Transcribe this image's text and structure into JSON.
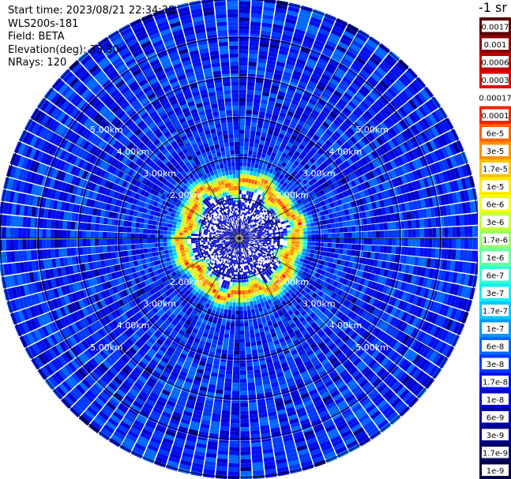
{
  "info": {
    "start_time": "Start time: 2023/08/21 22:34:38",
    "instrument": "WLS200s-181",
    "field": "Field: BETA",
    "elevation": "Elevation(deg): 35.30",
    "nrays": "NRays: 120"
  },
  "colorbar": {
    "unit_label": "-1 sr",
    "labels": [
      "0.0017",
      "0.001",
      "0.0006",
      "0.0003",
      "0.00017",
      "0.0001",
      "6e-5",
      "3e-5",
      "1.7e-5",
      "1e-5",
      "6e-6",
      "3e-6",
      "1.7e-6",
      "1e-6",
      "6e-7",
      "3e-7",
      "1.7e-7",
      "1e-7",
      "6e-8",
      "3e-8",
      "1.7e-8",
      "1e-8",
      "6e-9",
      "3e-9",
      "1.7e-9",
      "1e-9"
    ],
    "colors": [
      "#5a0000",
      "#8c0000",
      "#c00000",
      "#e00000",
      "#ffffff",
      "#ff2000",
      "#ff6000",
      "#ff9000",
      "#ffc000",
      "#ffe800",
      "#f0ff10",
      "#c8ff38",
      "#98ff68",
      "#68ffa0",
      "#38ffd0",
      "#10f0f0",
      "#00c8ff",
      "#0098ff",
      "#0068ff",
      "#0038ff",
      "#0010f0",
      "#0000d0",
      "#0000a8",
      "#000088",
      "#000060",
      "#000040"
    ]
  },
  "chart_data": {
    "type": "heatmap",
    "projection": "polar PPI",
    "field": "BETA",
    "n_rays": 120,
    "elevation_deg": 35.3,
    "range_rings": [
      {
        "label": "1.00km",
        "range_km": 1.0
      },
      {
        "label": "2.00km",
        "range_km": 2.0
      },
      {
        "label": "3.00km",
        "range_km": 3.0
      },
      {
        "label": "4.00km",
        "range_km": 4.0
      },
      {
        "label": "5.00km",
        "range_km": 5.0
      }
    ],
    "max_range_km": 5.95,
    "color_scale": {
      "min": "1e-9",
      "max": "0.0017",
      "scale": "log"
    },
    "features": {
      "inner_region_km": [
        0,
        1.0
      ],
      "inner_dominant_value": "1e-8",
      "enhanced_ring_km": [
        1.15,
        1.55
      ],
      "enhanced_ring_peak_value": "0.0001",
      "outer_dominant_value": "3e-8"
    }
  }
}
